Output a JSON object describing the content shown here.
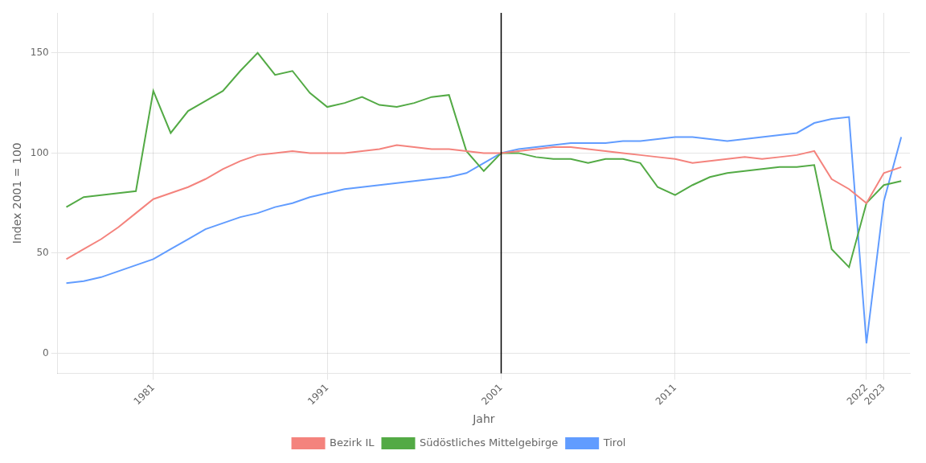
{
  "chart_data": {
    "type": "line",
    "xlabel": "Jahr",
    "ylabel": "Index 2001 = 100",
    "x": [
      1976,
      1977,
      1978,
      1979,
      1980,
      1981,
      1982,
      1983,
      1984,
      1985,
      1986,
      1987,
      1988,
      1989,
      1990,
      1991,
      1992,
      1993,
      1994,
      1995,
      1996,
      1997,
      1998,
      1999,
      2000,
      2001,
      2002,
      2003,
      2004,
      2005,
      2006,
      2007,
      2008,
      2009,
      2010,
      2011,
      2012,
      2013,
      2014,
      2015,
      2016,
      2017,
      2018,
      2019,
      2020,
      2021,
      2022,
      2023,
      2024
    ],
    "series": [
      {
        "name": "Bezirk IL",
        "color": "#F4837D",
        "values": [
          47,
          52,
          57,
          63,
          70,
          77,
          80,
          83,
          87,
          92,
          96,
          99,
          100,
          101,
          100,
          100,
          100,
          101,
          102,
          104,
          103,
          102,
          102,
          101,
          100,
          100,
          101,
          102,
          103,
          103,
          102,
          101,
          100,
          99,
          98,
          97,
          95,
          96,
          97,
          98,
          97,
          98,
          99,
          101,
          87,
          82,
          75,
          90,
          93
        ]
      },
      {
        "name": "Südöstliches Mittelgebirge",
        "color": "#53AA45",
        "values": [
          73,
          78,
          79,
          80,
          81,
          131,
          110,
          121,
          126,
          131,
          141,
          150,
          139,
          141,
          130,
          123,
          125,
          128,
          124,
          123,
          125,
          128,
          129,
          101,
          91,
          100,
          100,
          98,
          97,
          97,
          95,
          97,
          97,
          95,
          83,
          79,
          84,
          88,
          90,
          91,
          92,
          93,
          93,
          94,
          52,
          43,
          75,
          84,
          86
        ]
      },
      {
        "name": "Tirol",
        "color": "#619CFF",
        "values": [
          35,
          36,
          38,
          41,
          44,
          47,
          52,
          57,
          62,
          65,
          68,
          70,
          73,
          75,
          78,
          80,
          82,
          83,
          84,
          85,
          86,
          87,
          88,
          90,
          95,
          100,
          102,
          103,
          104,
          105,
          105,
          105,
          106,
          106,
          107,
          108,
          108,
          107,
          106,
          107,
          108,
          109,
          110,
          115,
          117,
          118,
          5,
          76,
          108
        ]
      }
    ],
    "vline_x": 2001,
    "xlim": [
      1975.5,
      2024.5
    ],
    "xticks": [
      1981,
      1991,
      2001,
      2011,
      2022,
      2023
    ],
    "ylim": [
      -10,
      170
    ],
    "yticks": [
      0,
      50,
      100,
      150
    ],
    "grid": true,
    "legend": "bottom"
  }
}
